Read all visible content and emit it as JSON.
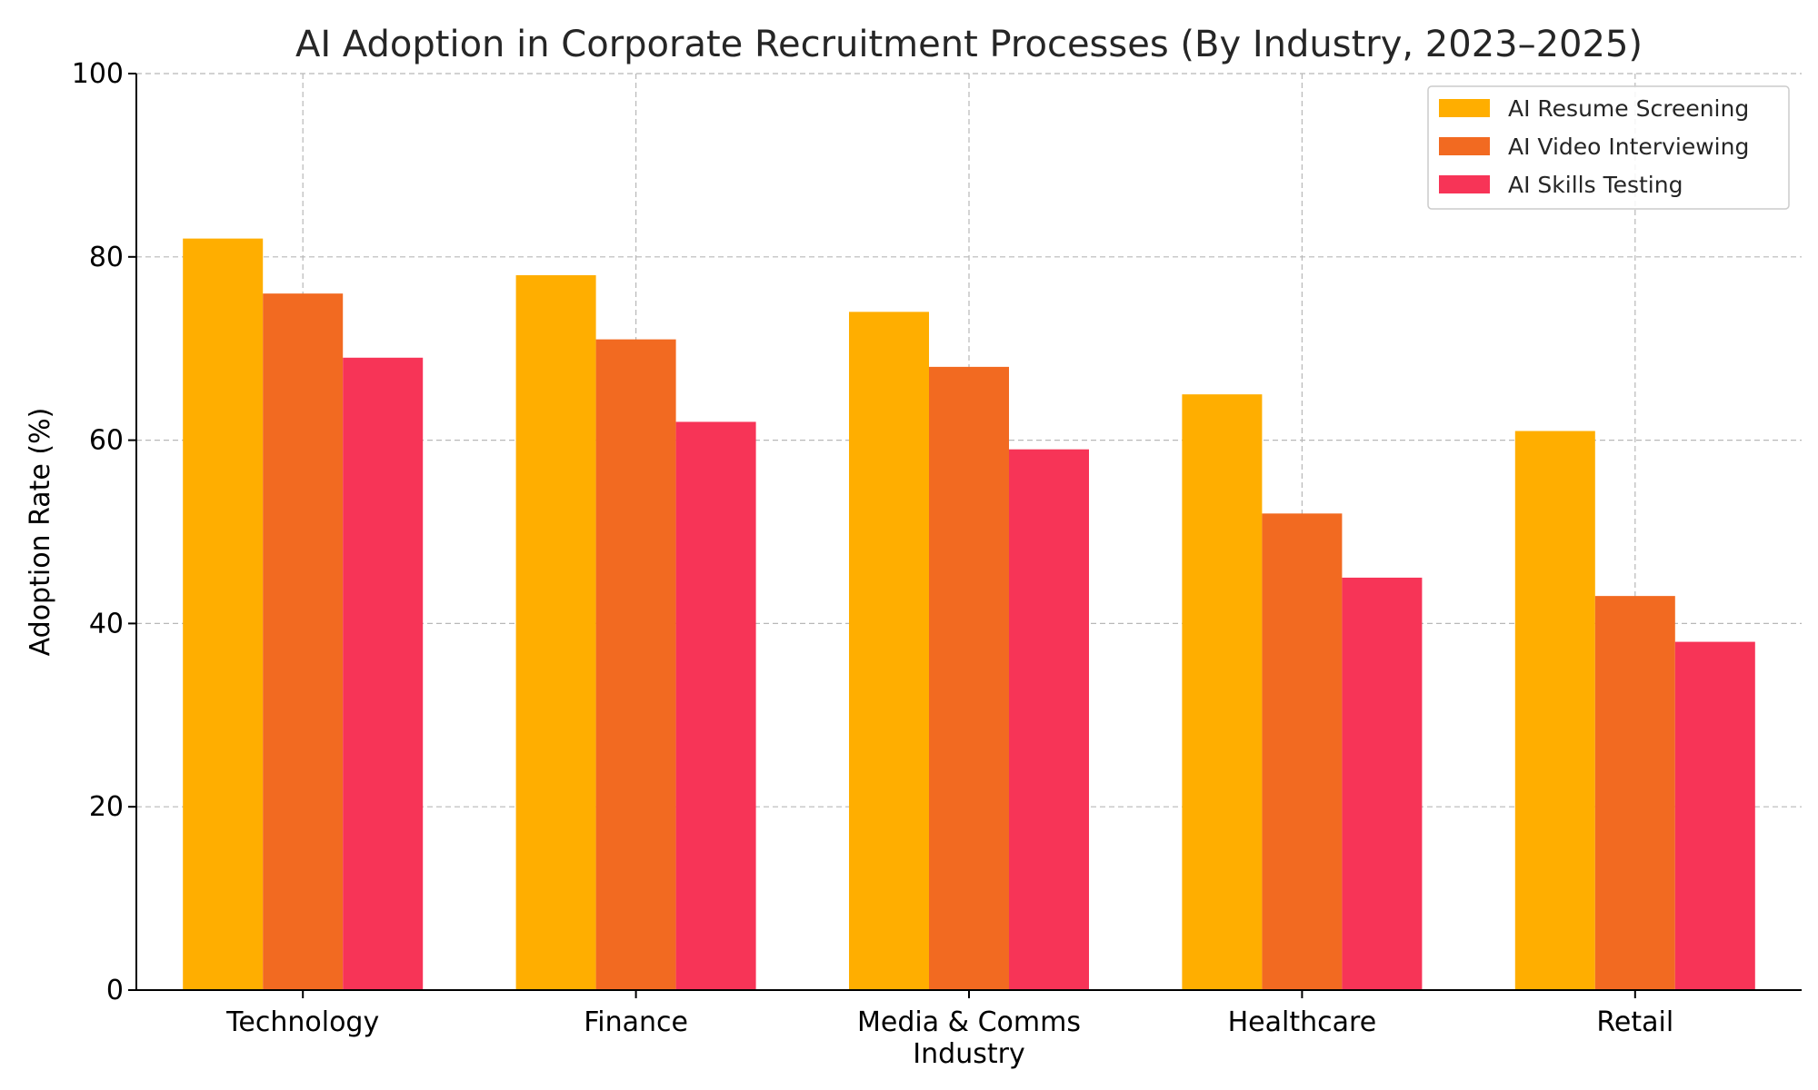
{
  "chart_data": {
    "type": "bar",
    "title": "AI Adoption in Corporate Recruitment Processes (By Industry, 2023–2025)",
    "xlabel": "Industry",
    "ylabel": "Adoption Rate (%)",
    "ylim": [
      0,
      100
    ],
    "yticks": [
      0,
      20,
      40,
      60,
      80,
      100
    ],
    "grid": true,
    "legend_position": "top-right",
    "categories": [
      "Technology",
      "Finance",
      "Media & Comms",
      "Healthcare",
      "Retail"
    ],
    "series": [
      {
        "name": "AI Resume Screening",
        "color": "#FFAE00",
        "values": [
          82,
          78,
          74,
          65,
          61
        ]
      },
      {
        "name": "AI Video Interviewing",
        "color": "#F26A21",
        "values": [
          76,
          71,
          68,
          52,
          43
        ]
      },
      {
        "name": "AI Skills Testing",
        "color": "#F73457",
        "values": [
          69,
          62,
          59,
          45,
          38
        ]
      }
    ]
  }
}
